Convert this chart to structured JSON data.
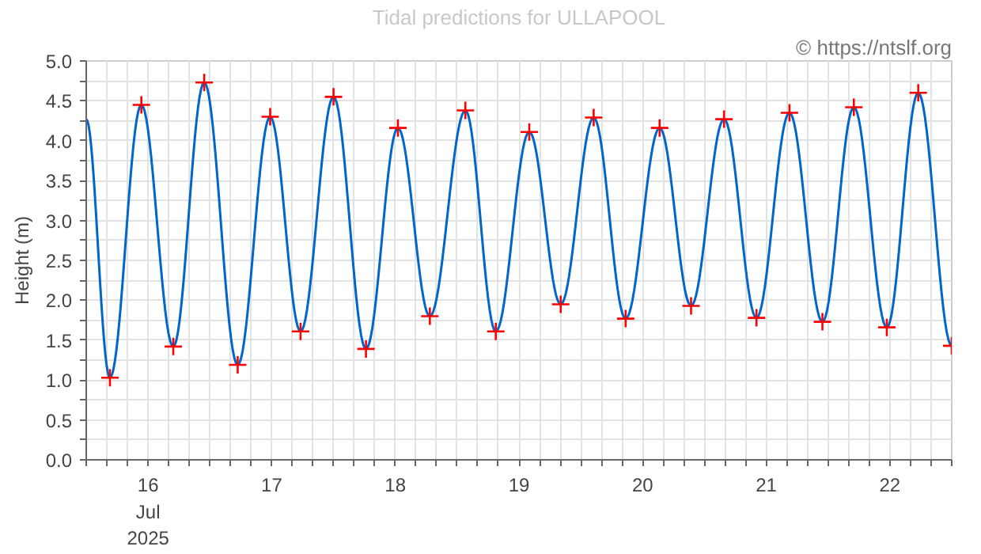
{
  "chart_data": {
    "type": "line",
    "title": "Tidal predictions for ULLAPOOL",
    "ylabel": "Height (m)",
    "annotations": [
      "© https://ntslf.org"
    ],
    "xlim": [
      "2025-07-16T00:00",
      "2025-07-23T00:00"
    ],
    "ylim": [
      0,
      5
    ],
    "xticks": [
      {
        "value": "2025-07-16T00:00",
        "label": null
      },
      {
        "value": "2025-07-16T04:00",
        "label": null
      },
      {
        "value": "2025-07-16T08:00",
        "label": null
      },
      {
        "value": "2025-07-16T12:00",
        "label": "16\nJul\n2025"
      },
      {
        "value": "2025-07-16T16:00",
        "label": null
      },
      {
        "value": "2025-07-16T20:00",
        "label": null
      },
      {
        "value": "2025-07-17T00:00",
        "label": null
      },
      {
        "value": "2025-07-17T04:00",
        "label": null
      },
      {
        "value": "2025-07-17T08:00",
        "label": null
      },
      {
        "value": "2025-07-17T12:00",
        "label": "17"
      },
      {
        "value": "2025-07-17T16:00",
        "label": null
      },
      {
        "value": "2025-07-17T20:00",
        "label": null
      },
      {
        "value": "2025-07-18T00:00",
        "label": null
      },
      {
        "value": "2025-07-18T04:00",
        "label": null
      },
      {
        "value": "2025-07-18T08:00",
        "label": null
      },
      {
        "value": "2025-07-18T12:00",
        "label": "18"
      },
      {
        "value": "2025-07-18T16:00",
        "label": null
      },
      {
        "value": "2025-07-18T20:00",
        "label": null
      },
      {
        "value": "2025-07-19T00:00",
        "label": null
      },
      {
        "value": "2025-07-19T04:00",
        "label": null
      },
      {
        "value": "2025-07-19T08:00",
        "label": null
      },
      {
        "value": "2025-07-19T12:00",
        "label": "19"
      },
      {
        "value": "2025-07-19T16:00",
        "label": null
      },
      {
        "value": "2025-07-19T20:00",
        "label": null
      },
      {
        "value": "2025-07-20T00:00",
        "label": null
      },
      {
        "value": "2025-07-20T04:00",
        "label": null
      },
      {
        "value": "2025-07-20T08:00",
        "label": null
      },
      {
        "value": "2025-07-20T12:00",
        "label": "20"
      },
      {
        "value": "2025-07-20T16:00",
        "label": null
      },
      {
        "value": "2025-07-20T20:00",
        "label": null
      },
      {
        "value": "2025-07-21T00:00",
        "label": null
      },
      {
        "value": "2025-07-21T04:00",
        "label": null
      },
      {
        "value": "2025-07-21T08:00",
        "label": null
      },
      {
        "value": "2025-07-21T12:00",
        "label": "21"
      },
      {
        "value": "2025-07-21T16:00",
        "label": null
      },
      {
        "value": "2025-07-21T20:00",
        "label": null
      },
      {
        "value": "2025-07-22T00:00",
        "label": null
      },
      {
        "value": "2025-07-22T04:00",
        "label": null
      },
      {
        "value": "2025-07-22T08:00",
        "label": null
      },
      {
        "value": "2025-07-22T12:00",
        "label": "22"
      },
      {
        "value": "2025-07-22T16:00",
        "label": null
      },
      {
        "value": "2025-07-22T20:00",
        "label": null
      },
      {
        "value": "2025-07-23T00:00",
        "label": null
      }
    ],
    "yticks": [
      {
        "value": 0,
        "label": "0.0"
      },
      {
        "value": 0.25,
        "label": null
      },
      {
        "value": 0.5,
        "label": "0.5"
      },
      {
        "value": 0.75,
        "label": null
      },
      {
        "value": 1,
        "label": "1.0"
      },
      {
        "value": 1.25,
        "label": null
      },
      {
        "value": 1.5,
        "label": "1.5"
      },
      {
        "value": 1.75,
        "label": null
      },
      {
        "value": 2,
        "label": "2.0"
      },
      {
        "value": 2.25,
        "label": null
      },
      {
        "value": 2.5,
        "label": "2.5"
      },
      {
        "value": 2.75,
        "label": null
      },
      {
        "value": 3,
        "label": "3.0"
      },
      {
        "value": 3.25,
        "label": null
      },
      {
        "value": 3.5,
        "label": "3.5"
      },
      {
        "value": 3.75,
        "label": null
      },
      {
        "value": 4,
        "label": "4.0"
      },
      {
        "value": 4.25,
        "label": null
      },
      {
        "value": 4.5,
        "label": "4.5"
      },
      {
        "value": 4.75,
        "label": null
      },
      {
        "value": 5,
        "label": "5.0"
      }
    ],
    "grid": true,
    "series": [
      {
        "color": "#0066cc",
        "marker": "none",
        "line_style": "solid",
        "x": [
          "2025-07-16T00:00",
          "2025-07-16T04:36",
          "2025-07-16T10:42",
          "2025-07-16T16:54",
          "2025-07-16T22:54",
          "2025-07-17T05:24",
          "2025-07-17T11:42",
          "2025-07-17T17:36",
          "2025-07-18T00:00",
          "2025-07-18T06:18",
          "2025-07-18T12:30",
          "2025-07-18T18:42",
          "2025-07-19T01:36",
          "2025-07-19T07:30",
          "2025-07-19T14:00",
          "2025-07-19T20:06",
          "2025-07-20T02:30",
          "2025-07-20T08:42",
          "2025-07-20T15:18",
          "2025-07-20T21:24",
          "2025-07-21T03:48",
          "2025-07-21T10:06",
          "2025-07-21T16:30",
          "2025-07-21T22:54",
          "2025-07-22T05:00",
          "2025-07-22T11:24",
          "2025-07-22T17:30",
          "2025-07-23T00:00"
        ],
        "values": [
          4.27,
          1.03,
          4.45,
          1.42,
          4.73,
          1.19,
          4.3,
          1.61,
          4.55,
          1.39,
          4.16,
          1.8,
          4.38,
          1.61,
          4.11,
          1.95,
          4.29,
          1.77,
          4.16,
          1.93,
          4.27,
          1.78,
          4.35,
          1.73,
          4.42,
          1.66,
          4.6,
          1.43
        ]
      },
      {
        "type": "scatter",
        "color": "#ff0000",
        "marker": "cross",
        "x": [
          "2025-07-16T04:36",
          "2025-07-16T10:42",
          "2025-07-16T16:54",
          "2025-07-16T22:54",
          "2025-07-17T05:24",
          "2025-07-17T11:42",
          "2025-07-17T17:36",
          "2025-07-18T00:00",
          "2025-07-18T06:18",
          "2025-07-18T12:30",
          "2025-07-18T18:42",
          "2025-07-19T01:36",
          "2025-07-19T07:30",
          "2025-07-19T14:00",
          "2025-07-19T20:06",
          "2025-07-20T02:30",
          "2025-07-20T08:42",
          "2025-07-20T15:18",
          "2025-07-20T21:24",
          "2025-07-21T03:48",
          "2025-07-21T10:06",
          "2025-07-21T16:30",
          "2025-07-21T22:54",
          "2025-07-22T05:00",
          "2025-07-22T11:24",
          "2025-07-22T17:30",
          "2025-07-23T00:00"
        ],
        "values": [
          1.03,
          4.45,
          1.42,
          4.73,
          1.19,
          4.3,
          1.61,
          4.55,
          1.39,
          4.16,
          1.8,
          4.38,
          1.61,
          4.11,
          1.95,
          4.29,
          1.77,
          4.16,
          1.93,
          4.27,
          1.78,
          4.35,
          1.73,
          4.42,
          1.66,
          4.6,
          1.43
        ]
      }
    ]
  }
}
